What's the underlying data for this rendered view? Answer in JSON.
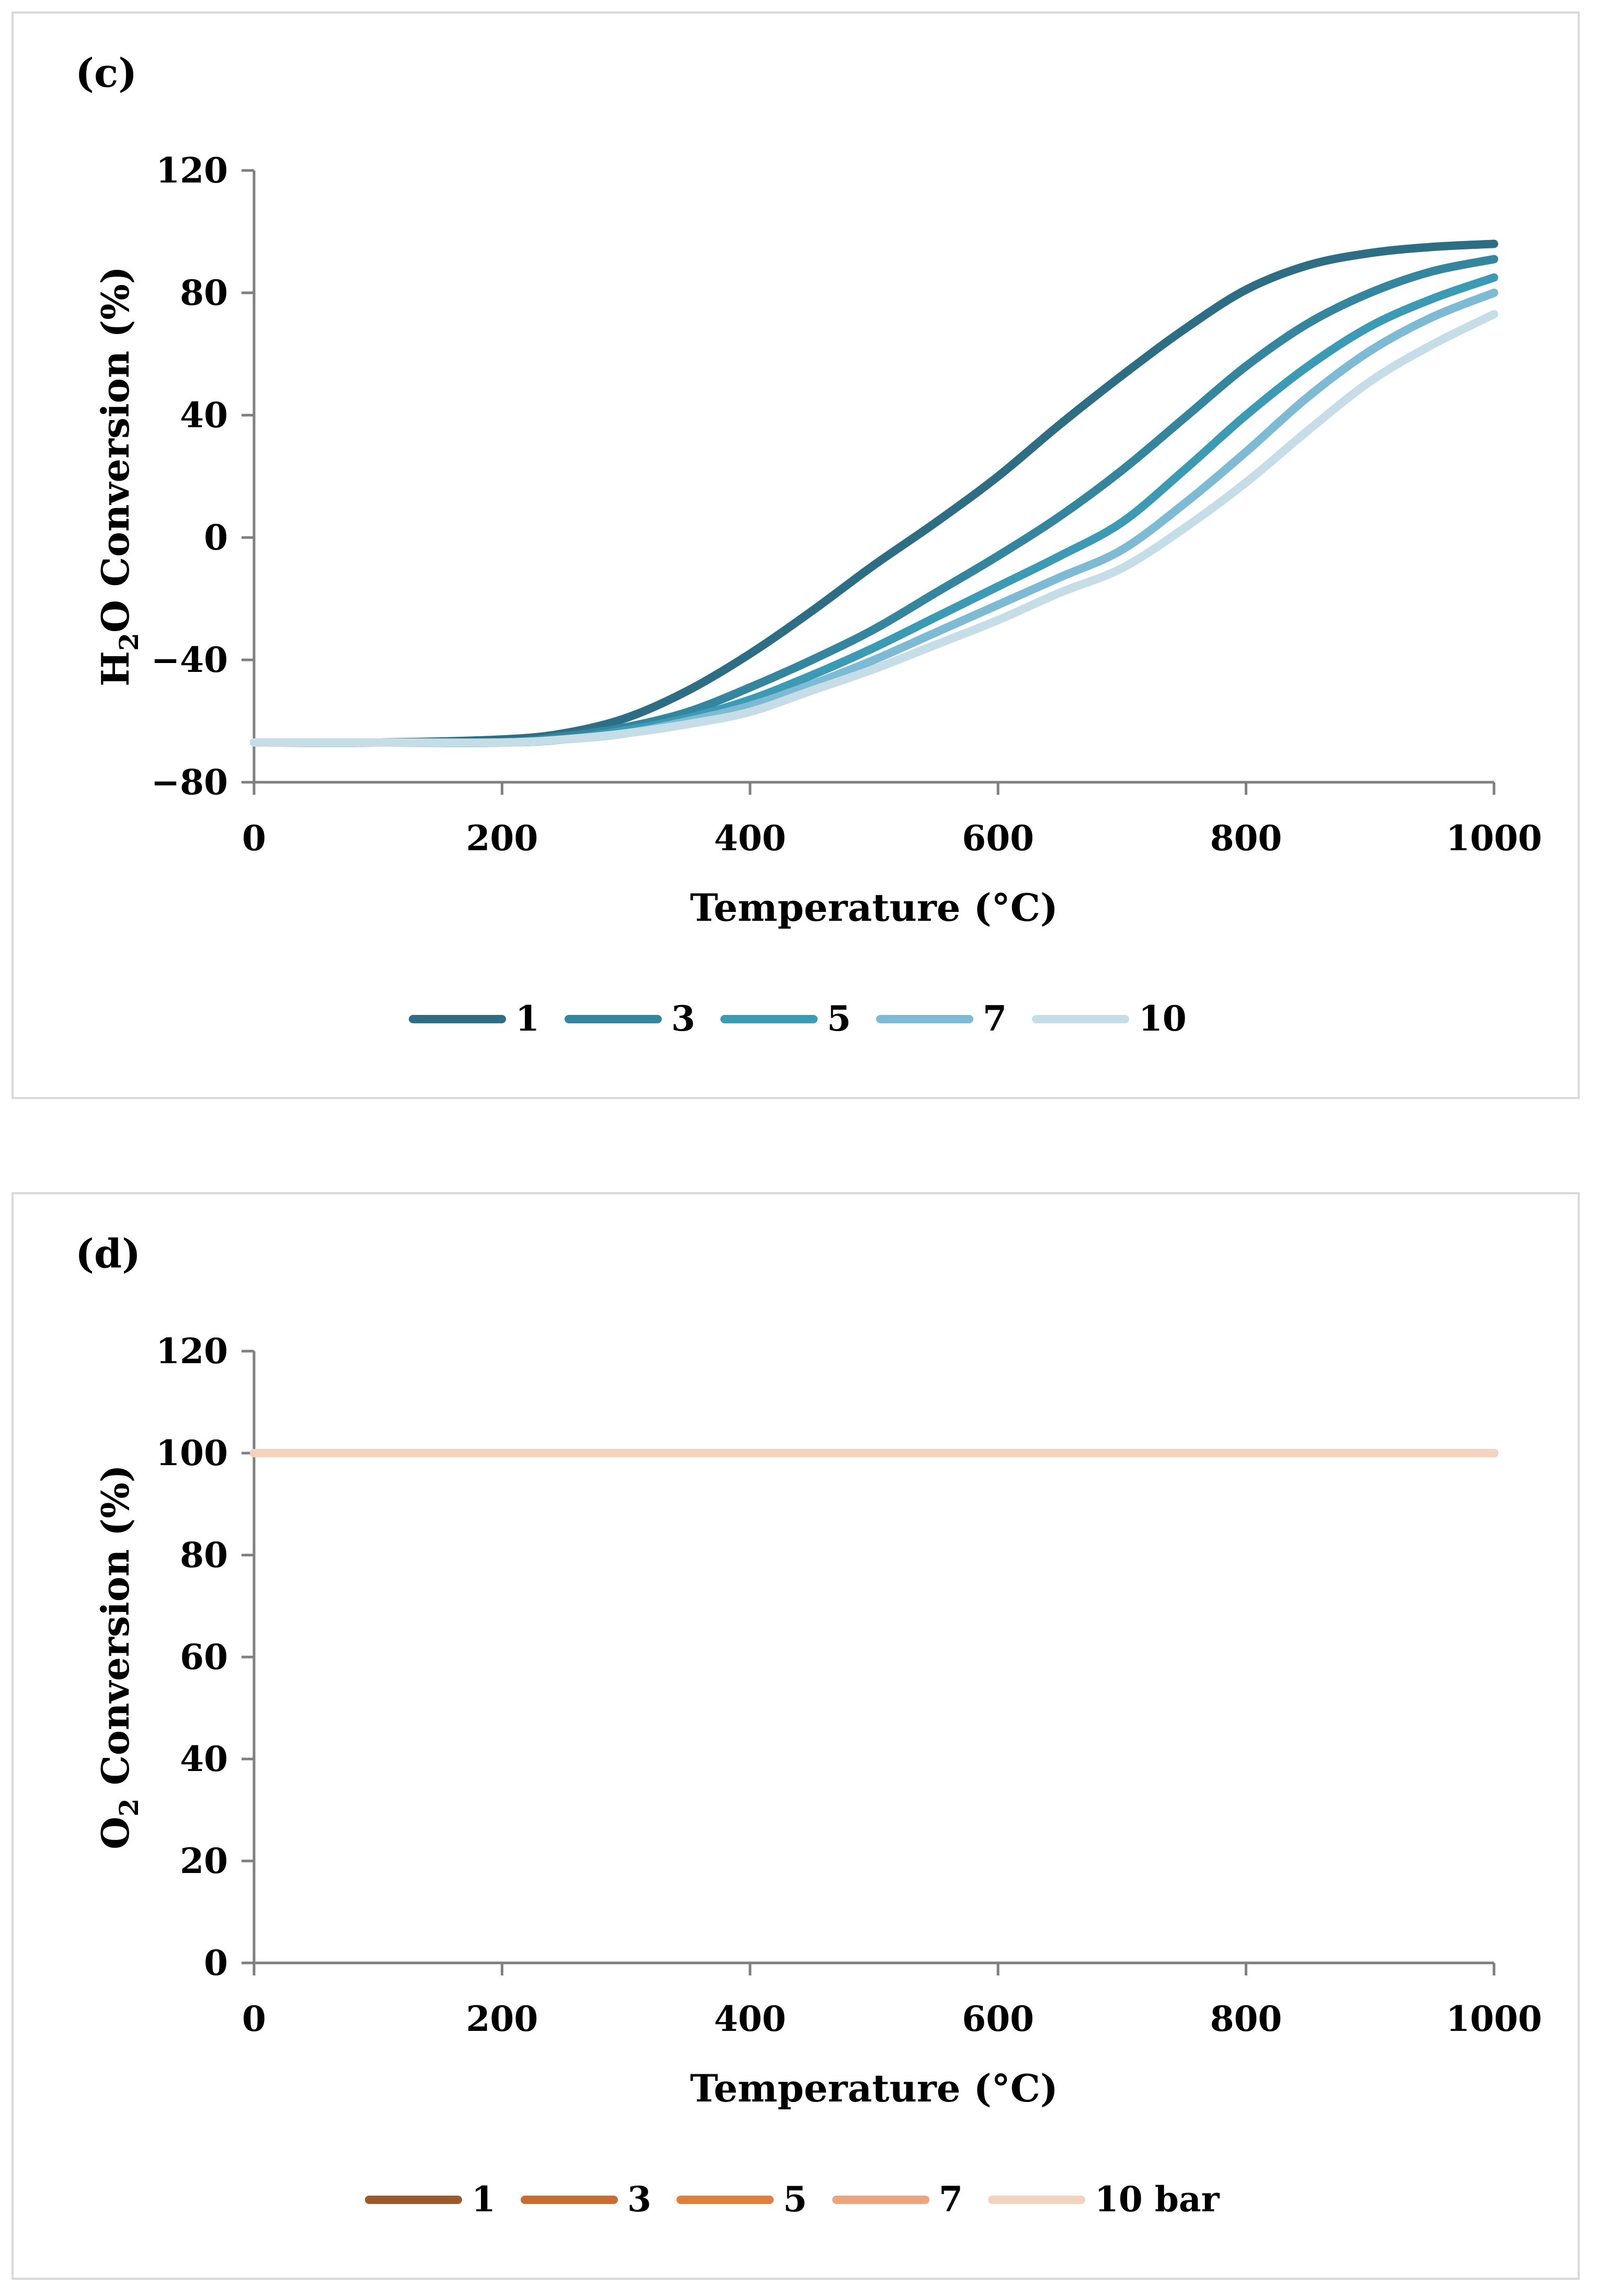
{
  "chart_data": [
    {
      "type": "line",
      "panel_label": "(c)",
      "title": "",
      "ylabel_main": "H",
      "ylabel_sub": "2",
      "ylabel_rest": "O Conversion (%)",
      "xlabel": "Temperature (°C)",
      "xlim": [
        0,
        1000
      ],
      "ylim": [
        -80,
        120
      ],
      "xticks": [
        "0",
        "200",
        "400",
        "600",
        "800",
        "1000"
      ],
      "yticks": [
        "120",
        "80",
        "40",
        "0",
        "−40",
        "−80"
      ],
      "ytick_values": [
        120,
        80,
        40,
        0,
        -40,
        -80
      ],
      "xtick_values": [
        0,
        200,
        400,
        600,
        800,
        1000
      ],
      "grid": false,
      "legend_position": "bottom",
      "x": [
        0,
        100,
        200,
        250,
        300,
        350,
        400,
        450,
        500,
        550,
        600,
        650,
        700,
        750,
        800,
        850,
        900,
        950,
        1000
      ],
      "series": [
        {
          "name": "1",
          "color": "#2e6e85",
          "values": [
            -67,
            -67,
            -66,
            -64,
            -59,
            -50,
            -38,
            -24,
            -9,
            5,
            20,
            37,
            53,
            68,
            81,
            89,
            93,
            95,
            96
          ]
        },
        {
          "name": "3",
          "color": "#34869e",
          "values": [
            -67,
            -67,
            -67,
            -65,
            -62,
            -57,
            -49,
            -40,
            -30,
            -18,
            -6,
            7,
            22,
            39,
            56,
            70,
            80,
            87,
            91
          ]
        },
        {
          "name": "5",
          "color": "#3c9bb4",
          "values": [
            -67,
            -67,
            -67,
            -66,
            -63,
            -59,
            -53,
            -45,
            -36,
            -26,
            -16,
            -6,
            5,
            22,
            40,
            56,
            69,
            78,
            85
          ]
        },
        {
          "name": "7",
          "color": "#7dbbd4",
          "values": [
            -67,
            -67,
            -67,
            -66,
            -64,
            -60,
            -55,
            -48,
            -40,
            -31,
            -22,
            -13,
            -4,
            11,
            28,
            46,
            61,
            72,
            80
          ]
        },
        {
          "name": "10",
          "color": "#c5dde6",
          "values": [
            -67,
            -67,
            -67,
            -66,
            -64,
            -61,
            -57,
            -50,
            -43,
            -35,
            -27,
            -18,
            -10,
            3,
            18,
            35,
            51,
            63,
            73
          ]
        }
      ]
    },
    {
      "type": "line",
      "panel_label": "(d)",
      "title": "",
      "ylabel_main": "O",
      "ylabel_sub": "2",
      "ylabel_rest": " Conversion (%)",
      "xlabel": "Temperature (°C)",
      "xlim": [
        0,
        1000
      ],
      "ylim": [
        0,
        120
      ],
      "xticks": [
        "0",
        "200",
        "400",
        "600",
        "800",
        "1000"
      ],
      "yticks": [
        "120",
        "100",
        "80",
        "60",
        "40",
        "20",
        "0"
      ],
      "ytick_values": [
        120,
        100,
        80,
        60,
        40,
        20,
        0
      ],
      "xtick_values": [
        0,
        200,
        400,
        600,
        800,
        1000
      ],
      "grid": false,
      "legend_position": "bottom",
      "x": [
        0,
        1000
      ],
      "series": [
        {
          "name": "1",
          "color": "#9c5a2c",
          "values": [
            100,
            100
          ]
        },
        {
          "name": "3",
          "color": "#c76d32",
          "values": [
            100,
            100
          ]
        },
        {
          "name": "5",
          "color": "#de7f3e",
          "values": [
            100,
            100
          ]
        },
        {
          "name": "7",
          "color": "#eba47c",
          "values": [
            100,
            100
          ]
        },
        {
          "name": "10 bar",
          "color": "#f3d2bf",
          "values": [
            100,
            100
          ]
        }
      ]
    }
  ]
}
